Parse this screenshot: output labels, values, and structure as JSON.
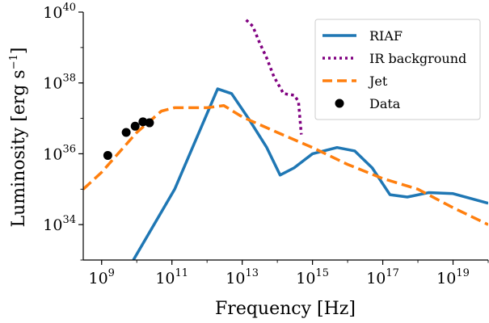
{
  "chart_data": {
    "type": "line",
    "title": "",
    "xlabel": "Frequency [Hz]",
    "ylabel": "Luminosity [erg s⁻¹]",
    "ylabel_parts": {
      "main": "Luminosity [erg s",
      "exp": "−1",
      "tail": "]"
    },
    "x_scale": "log",
    "y_scale": "log",
    "xlim": [
      300000000,
      1e+20
    ],
    "ylim": [
      1e+33,
      1e+40
    ],
    "x_ticks": [
      {
        "base": "10",
        "exp": "9",
        "value": 1000000000.0
      },
      {
        "base": "10",
        "exp": "11",
        "value": 100000000000.0
      },
      {
        "base": "10",
        "exp": "13",
        "value": 10000000000000.0
      },
      {
        "base": "10",
        "exp": "15",
        "value": 1000000000000000.0
      },
      {
        "base": "10",
        "exp": "17",
        "value": 1e+17
      },
      {
        "base": "10",
        "exp": "19",
        "value": 1e+19
      }
    ],
    "y_ticks": [
      {
        "base": "10",
        "exp": "34",
        "value": 1e+34
      },
      {
        "base": "10",
        "exp": "36",
        "value": 1e+36
      },
      {
        "base": "10",
        "exp": "38",
        "value": 1e+38
      },
      {
        "base": "10",
        "exp": "40",
        "value": 1e+40
      }
    ],
    "grid": false,
    "legend_position": "top-right",
    "series": [
      {
        "name": "RIAF",
        "style": "solid",
        "color": "#1f77b4",
        "x": [
          8000000000.0,
          120000000000.0,
          2000000000000.0,
          5000000000000.0,
          15000000000000.0,
          50000000000000.0,
          120000000000000.0,
          300000000000000.0,
          1000000000000000.0,
          5000000000000000.0,
          1.6e+16,
          5e+16,
          1.6e+17,
          5e+17,
          2e+18,
          1e+19,
          1e+20
        ],
        "y": [
          1e+33,
          1e+35,
          6.8e+37,
          5e+37,
          1e+37,
          1.5e+36,
          2.5e+35,
          4e+35,
          1e+36,
          1.5e+36,
          1.2e+36,
          4e+35,
          7e+34,
          6e+34,
          8e+34,
          7.5e+34,
          4e+34
        ]
      },
      {
        "name": "IR background",
        "style": "dotted",
        "color": "#800080",
        "x": [
          13000000000000.0,
          20000000000000.0,
          30000000000000.0,
          50000000000000.0,
          80000000000000.0,
          150000000000000.0,
          300000000000000.0,
          400000000000000.0,
          480000000000000.0
        ],
        "y": [
          6e+39,
          4e+39,
          1.5e+39,
          5e+38,
          1.5e+38,
          5e+37,
          4.5e+37,
          3e+37,
          3.5e+36
        ]
      },
      {
        "name": "Jet",
        "style": "dashed",
        "color": "#ff7f0e",
        "x": [
          300000000,
          1000000000.0,
          10000000000.0,
          50000000000.0,
          120000000000.0,
          1000000000000.0,
          3000000000000.0,
          10000000000000.0,
          100000000000000.0,
          1000000000000000.0,
          1e+16,
          1e+17,
          1e+18,
          1e+19,
          1e+20
        ],
        "y": [
          1e+35,
          3e+35,
          4e+36,
          1.6e+37,
          2e+37,
          2e+37,
          2.3e+37,
          1.1e+37,
          4e+36,
          1.5e+36,
          5e+35,
          2e+35,
          1e+35,
          3e+34,
          1e+34
        ]
      },
      {
        "name": "Data",
        "style": "markers",
        "color": "#000000",
        "x": [
          1500000000.0,
          5000000000.0,
          9000000000.0,
          15000000000.0,
          23000000000.0
        ],
        "y": [
          9e+35,
          4e+36,
          6e+36,
          8e+36,
          7.5e+36
        ]
      }
    ]
  }
}
